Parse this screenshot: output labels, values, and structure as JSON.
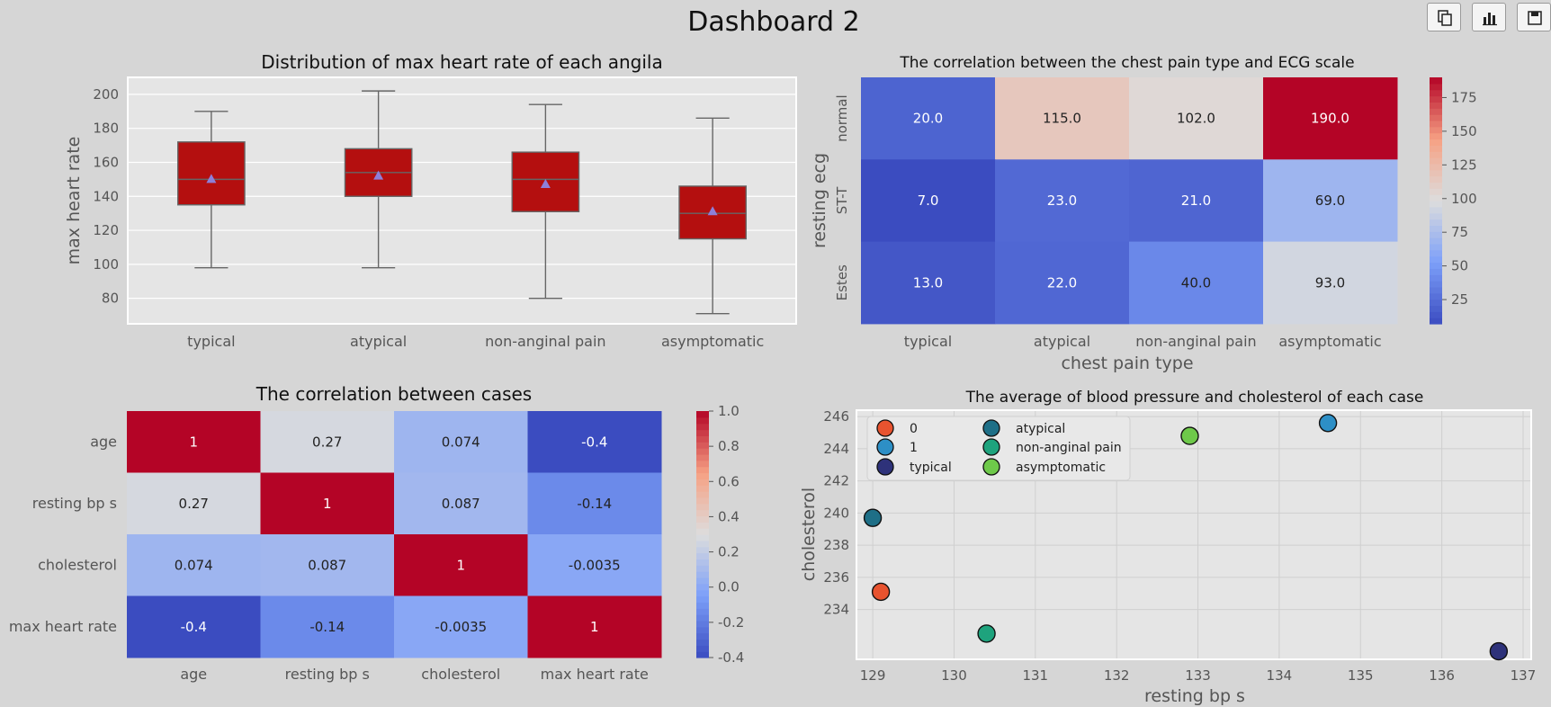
{
  "dashboard": {
    "title": "Dashboard 2",
    "toolbar": [
      {
        "icon": "copy-icon"
      },
      {
        "icon": "bar-chart-icon"
      },
      {
        "icon": "save-icon"
      }
    ]
  },
  "chart_data": [
    {
      "id": "box",
      "type": "box",
      "title": "Distribution of max heart rate of each angila",
      "xlabel": "",
      "ylabel": "max heart rate",
      "categories": [
        "typical",
        "atypical",
        "non-anginal pain",
        "asymptomatic"
      ],
      "boxes": [
        {
          "whisker_low": 98,
          "q1": 135,
          "median": 150,
          "q3": 172,
          "whisker_high": 190,
          "mean": 150
        },
        {
          "whisker_low": 98,
          "q1": 140,
          "median": 154,
          "q3": 168,
          "whisker_high": 202,
          "mean": 152
        },
        {
          "whisker_low": 80,
          "q1": 131,
          "median": 150,
          "q3": 166,
          "whisker_high": 194,
          "mean": 147
        },
        {
          "whisker_low": 71,
          "q1": 115,
          "median": 130,
          "q3": 146,
          "whisker_high": 186,
          "mean": 131
        }
      ],
      "yticks": [
        80,
        100,
        120,
        140,
        160,
        180,
        200
      ],
      "ylim": [
        65,
        210
      ],
      "box_color": "#b40f0f",
      "mean_marker_color": "#8e7fd9",
      "grid": true
    },
    {
      "id": "heat-ecg",
      "type": "heatmap",
      "title": "The correlation between the chest pain type and ECG scale",
      "xlabel": "chest pain type",
      "ylabel": "resting ecg",
      "x": [
        "typical",
        "atypical",
        "non-anginal pain",
        "asymptomatic"
      ],
      "y": [
        "normal",
        "ST-T",
        "Estes"
      ],
      "values": [
        [
          20.0,
          115.0,
          102.0,
          190.0
        ],
        [
          7.0,
          23.0,
          21.0,
          69.0
        ],
        [
          13.0,
          22.0,
          40.0,
          93.0
        ]
      ],
      "labels": [
        [
          "20.0",
          "115.0",
          "102.0",
          "190.0"
        ],
        [
          "7.0",
          "23.0",
          "21.0",
          "69.0"
        ],
        [
          "13.0",
          "22.0",
          "40.0",
          "93.0"
        ]
      ],
      "vmin": 7,
      "vmax": 190,
      "colorbar_ticks": [
        25,
        50,
        75,
        100,
        125,
        150,
        175
      ],
      "cmap": "coolwarm"
    },
    {
      "id": "heat-corr",
      "type": "heatmap",
      "title": "The correlation between cases",
      "xlabel": "",
      "ylabel": "",
      "x": [
        "age",
        "resting bp s",
        "cholesterol",
        "max heart rate"
      ],
      "y": [
        "age",
        "resting bp s",
        "cholesterol",
        "max heart rate"
      ],
      "values": [
        [
          1,
          0.27,
          0.074,
          -0.4
        ],
        [
          0.27,
          1,
          0.087,
          -0.14
        ],
        [
          0.074,
          0.087,
          1,
          -0.0035
        ],
        [
          -0.4,
          -0.14,
          -0.0035,
          1
        ]
      ],
      "labels": [
        [
          "1",
          "0.27",
          "0.074",
          "-0.4"
        ],
        [
          "0.27",
          "1",
          "0.087",
          "-0.14"
        ],
        [
          "0.074",
          "0.087",
          "1",
          "-0.0035"
        ],
        [
          "-0.4",
          "-0.14",
          "-0.0035",
          "1"
        ]
      ],
      "vmin": -0.4,
      "vmax": 1.0,
      "colorbar_ticks": [
        -0.4,
        -0.2,
        0.0,
        0.2,
        0.4,
        0.6,
        0.8,
        1.0
      ],
      "colorbar_labels": [
        "-0.4",
        "-0.2",
        "0.0",
        "0.2",
        "0.4",
        "0.6",
        "0.8",
        "1.0"
      ],
      "cmap": "coolwarm"
    },
    {
      "id": "scatter",
      "type": "scatter",
      "title": "The average of blood pressure and cholesterol of each case",
      "xlabel": "resting bp s",
      "ylabel": "cholesterol",
      "points": [
        {
          "name": "0",
          "x": 129.1,
          "y": 235.1,
          "color": "#e8532f"
        },
        {
          "name": "1",
          "x": 134.6,
          "y": 245.6,
          "color": "#2d8fc6"
        },
        {
          "name": "typical",
          "x": 136.7,
          "y": 231.4,
          "color": "#2e327a"
        },
        {
          "name": "atypical",
          "x": 129.0,
          "y": 239.7,
          "color": "#1e6f87"
        },
        {
          "name": "non-anginal pain",
          "x": 130.4,
          "y": 232.5,
          "color": "#1ea37d"
        },
        {
          "name": "asymptomatic",
          "x": 132.9,
          "y": 244.8,
          "color": "#6ec94a"
        }
      ],
      "xticks": [
        129,
        130,
        131,
        132,
        133,
        134,
        135,
        136,
        137
      ],
      "yticks": [
        234,
        236,
        238,
        240,
        242,
        244,
        246
      ],
      "ytick_labels": [
        "234",
        "236",
        "238",
        "240",
        "242",
        "244",
        "246"
      ],
      "xlim": [
        128.8,
        137.1
      ],
      "ylim": [
        230.9,
        246.4
      ],
      "legend_position": "upper-left",
      "grid": true
    }
  ]
}
